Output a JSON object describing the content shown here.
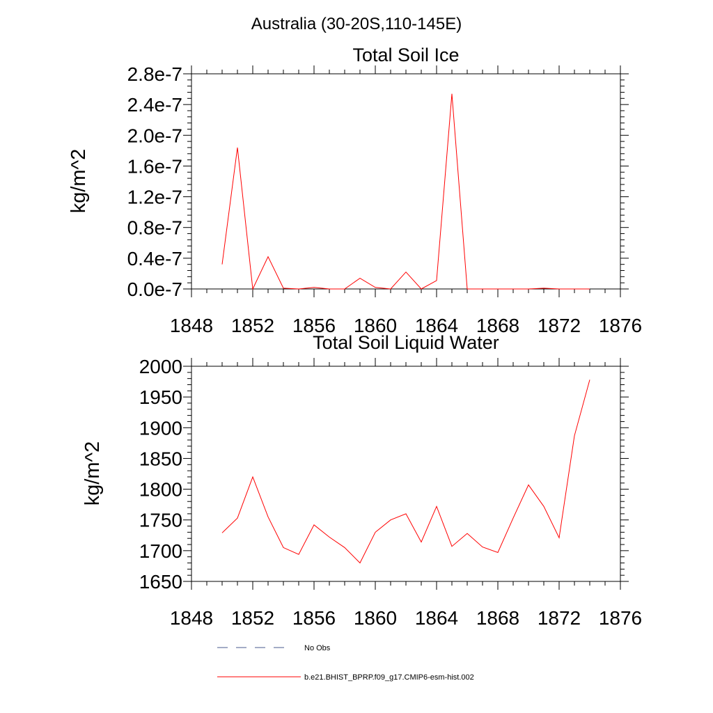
{
  "figure": {
    "main_title": "Australia (30-20S,110-145E)"
  },
  "chart_data": [
    {
      "type": "line",
      "title": "Total Soil Ice",
      "xlabel": "",
      "ylabel": "kg/m^2",
      "xlim": [
        1848,
        1876
      ],
      "ylim": [
        0,
        2.8e-07
      ],
      "x_ticks": [
        1848,
        1852,
        1856,
        1860,
        1864,
        1868,
        1872,
        1876
      ],
      "x_tick_labels": [
        "1848",
        "1852",
        "1856",
        "1860",
        "1864",
        "1868",
        "1872",
        "1876"
      ],
      "y_ticks": [
        0,
        4e-08,
        8e-08,
        1.2e-07,
        1.6e-07,
        2e-07,
        2.4e-07,
        2.8e-07
      ],
      "y_tick_labels": [
        "0.0e-7",
        "0.4e-7",
        "0.8e-7",
        "1.2e-7",
        "1.6e-7",
        "2.0e-7",
        "2.4e-7",
        "2.8e-7"
      ],
      "grid": false,
      "series": [
        {
          "name": "b.e21.BHIST_BPRP.f09_g17.CMIP6-esm-hist.002",
          "color": "#ff0000",
          "x": [
            1850,
            1851,
            1852,
            1853,
            1854,
            1855,
            1856,
            1857,
            1858,
            1859,
            1860,
            1861,
            1862,
            1863,
            1864,
            1865,
            1866,
            1867,
            1868,
            1869,
            1870,
            1871,
            1872,
            1873,
            1874
          ],
          "values": [
            3.2e-08,
            1.84e-07,
            0,
            4.2e-08,
            1e-09,
            0,
            2e-09,
            0,
            0,
            1.4e-08,
            2e-09,
            0,
            2.2e-08,
            0,
            1.1e-08,
            2.54e-07,
            0,
            0,
            0,
            0,
            0,
            1e-09,
            0,
            0,
            0
          ]
        }
      ]
    },
    {
      "type": "line",
      "title": "Total Soil Liquid Water",
      "xlabel": "",
      "ylabel": "kg/m^2",
      "xlim": [
        1848,
        1876
      ],
      "ylim": [
        1650,
        2000
      ],
      "x_ticks": [
        1848,
        1852,
        1856,
        1860,
        1864,
        1868,
        1872,
        1876
      ],
      "x_tick_labels": [
        "1848",
        "1852",
        "1856",
        "1860",
        "1864",
        "1868",
        "1872",
        "1876"
      ],
      "y_ticks": [
        1650,
        1700,
        1750,
        1800,
        1850,
        1900,
        1950,
        2000
      ],
      "y_tick_labels": [
        "1650",
        "1700",
        "1750",
        "1800",
        "1850",
        "1900",
        "1950",
        "2000"
      ],
      "grid": false,
      "series": [
        {
          "name": "b.e21.BHIST_BPRP.f09_g17.CMIP6-esm-hist.002",
          "color": "#ff0000",
          "x": [
            1850,
            1851,
            1852,
            1853,
            1854,
            1855,
            1856,
            1857,
            1858,
            1859,
            1860,
            1861,
            1862,
            1863,
            1864,
            1865,
            1866,
            1867,
            1868,
            1869,
            1870,
            1871,
            1872,
            1873,
            1874
          ],
          "values": [
            1729,
            1753,
            1820,
            1755,
            1705,
            1694,
            1742,
            1722,
            1705,
            1680,
            1730,
            1750,
            1760,
            1714,
            1772,
            1707,
            1728,
            1706,
            1697,
            1753,
            1807,
            1772,
            1721,
            1887,
            1978
          ]
        }
      ]
    }
  ],
  "legend": {
    "placement": "bottom",
    "entries": [
      {
        "label": "No Obs",
        "color": "#4a5a8c",
        "style": "dashed"
      },
      {
        "label": "b.e21.BHIST_BPRP.f09_g17.CMIP6-esm-hist.002",
        "color": "#ff0000",
        "style": "solid"
      }
    ]
  }
}
